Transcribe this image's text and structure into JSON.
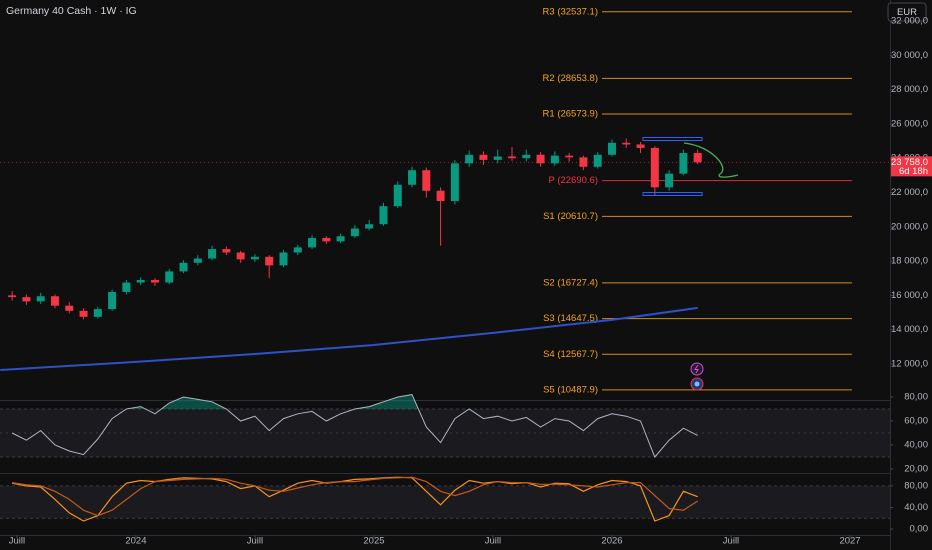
{
  "chart_data": [
    {
      "type": "candlestick",
      "title": "Germany 40 Cash · 1W · IG",
      "currency": "EUR",
      "x": [
        2023.48,
        2023.54,
        2023.6,
        2023.66,
        2023.72,
        2023.78,
        2023.84,
        2023.9,
        2023.96,
        2024.02,
        2024.08,
        2024.14,
        2024.2,
        2024.26,
        2024.32,
        2024.38,
        2024.44,
        2024.5,
        2024.56,
        2024.62,
        2024.68,
        2024.74,
        2024.8,
        2024.86,
        2024.92,
        2024.98,
        2025.04,
        2025.1,
        2025.16,
        2025.22,
        2025.28,
        2025.34,
        2025.4,
        2025.46,
        2025.52,
        2025.58,
        2025.64,
        2025.7,
        2025.76,
        2025.82,
        2025.88,
        2025.94,
        2026.0,
        2026.06,
        2026.12,
        2026.18,
        2026.24,
        2026.3,
        2026.36
      ],
      "open": [
        16000,
        15900,
        15650,
        15950,
        15400,
        15100,
        14750,
        15200,
        16200,
        16750,
        16900,
        16750,
        17400,
        17900,
        18150,
        18700,
        18500,
        18100,
        18250,
        17750,
        18500,
        18800,
        19350,
        19150,
        19450,
        19900,
        20150,
        21200,
        22450,
        23300,
        22100,
        21500,
        23700,
        24200,
        23900,
        24100,
        24000,
        24200,
        23700,
        24150,
        24050,
        23500,
        24200,
        24900,
        24800,
        24600,
        22300,
        23100,
        24300
      ],
      "high": [
        16250,
        16050,
        16150,
        16050,
        15600,
        15250,
        15350,
        16350,
        16900,
        17050,
        17000,
        17550,
        18050,
        18350,
        18900,
        18850,
        18600,
        18400,
        18350,
        18650,
        18950,
        19500,
        19450,
        19600,
        20100,
        20400,
        21400,
        22650,
        23500,
        23450,
        22300,
        23900,
        24450,
        24400,
        24500,
        24650,
        24500,
        24350,
        24400,
        24300,
        24150,
        24350,
        25100,
        25150,
        24950,
        24700,
        23300,
        24500,
        24500
      ],
      "low": [
        15700,
        15450,
        15500,
        15250,
        14950,
        14600,
        14650,
        15100,
        16050,
        16600,
        16550,
        16650,
        17300,
        17750,
        18050,
        18350,
        17900,
        17950,
        17000,
        17650,
        18350,
        18700,
        19000,
        19050,
        19350,
        19800,
        20050,
        21100,
        22300,
        21700,
        18900,
        21300,
        23500,
        23600,
        23700,
        23850,
        23800,
        23500,
        23550,
        23800,
        23300,
        23400,
        24100,
        24600,
        24300,
        21850,
        22100,
        23000,
        23650
      ],
      "close": [
        15900,
        15650,
        15950,
        15400,
        15100,
        14750,
        15200,
        16200,
        16750,
        16900,
        16750,
        17400,
        17900,
        18150,
        18700,
        18500,
        18100,
        18250,
        17750,
        18500,
        18800,
        19350,
        19150,
        19450,
        19900,
        20150,
        21200,
        22450,
        23300,
        22100,
        21500,
        23700,
        24200,
        23900,
        24100,
        24000,
        24200,
        23700,
        24150,
        24050,
        23500,
        24200,
        24900,
        24800,
        24600,
        22300,
        23100,
        24300,
        23758
      ],
      "up_color": "#089981",
      "down_color": "#f23645",
      "xlim": [
        2023.429,
        2027.168
      ],
      "xticks": [
        {
          "value": 2023.5,
          "label": "Juill"
        },
        2024,
        {
          "value": 2024.5,
          "label": "Juill"
        },
        2025,
        {
          "value": 2025.5,
          "label": "Juill"
        },
        2026,
        {
          "value": 2026.5,
          "label": "Juill"
        },
        2027
      ],
      "ylim": [
        9900,
        33225
      ],
      "yticks": [
        {
          "value": 32000,
          "label": "32 000,0"
        },
        {
          "value": 30000,
          "label": "30 000,0"
        },
        {
          "value": 28000,
          "label": "28 000,0"
        },
        {
          "value": 26000,
          "label": "26 000,0"
        },
        {
          "value": 24000,
          "label": "24 000,0"
        },
        {
          "value": 22000,
          "label": "22 000,0"
        },
        {
          "value": 20000,
          "label": "20 000,0"
        },
        {
          "value": 18000,
          "label": "18 000,0"
        },
        {
          "value": 16000,
          "label": "16 000,0"
        },
        {
          "value": 14000,
          "label": "14 000,0"
        },
        {
          "value": 12000,
          "label": "12 000,0"
        }
      ],
      "last_price": {
        "value": 23758,
        "label": "23 758,0"
      },
      "countdown": "6d 18h",
      "series": [
        {
          "type": "line",
          "color": "#2f50c8",
          "x": [
            2023.43,
            2024.0,
            2024.5,
            2025.0,
            2025.5,
            2026.0,
            2026.36
          ],
          "values": [
            11650,
            12120,
            12580,
            13110,
            13810,
            14570,
            15270
          ]
        }
      ],
      "levels": [
        {
          "value": 32537.1,
          "label": "R3 (32537.1)",
          "color": "#f7a21b"
        },
        {
          "value": 28653.8,
          "label": "R2 (28653.8)",
          "color": "#f7a21b"
        },
        {
          "value": 26573.9,
          "label": "R1 (26573.9)",
          "color": "#f7a21b"
        },
        {
          "value": 22690.6,
          "label": "P (22690.6)",
          "color": "#f23645"
        },
        {
          "value": 20610.7,
          "label": "S1 (20610.7)",
          "color": "#f7a21b"
        },
        {
          "value": 16727.4,
          "label": "S2 (16727.4)",
          "color": "#f7a21b"
        },
        {
          "value": 14647.5,
          "label": "S3 (14647.5)",
          "color": "#f7a21b"
        },
        {
          "value": 12567.7,
          "label": "S4 (12567.7)",
          "color": "#f7a21b"
        },
        {
          "value": 10487.9,
          "label": "S5 (10487.9)",
          "color": "#f7a21b"
        }
      ]
    },
    {
      "type": "rsi",
      "ylim": [
        17,
        82
      ],
      "yticks": [
        {
          "value": 80,
          "label": "80,00"
        },
        {
          "value": 60,
          "label": "60,00"
        },
        {
          "value": 40,
          "label": "40,00"
        },
        {
          "value": 20,
          "label": "20,00"
        }
      ],
      "bands": [
        30,
        70
      ],
      "middle": 50,
      "band_color": "#089981",
      "series": [
        {
          "color": "#b2b5be",
          "values": [
            50,
            44,
            52,
            40,
            35,
            32,
            45,
            62,
            70,
            72,
            66,
            75,
            80,
            78,
            76,
            70,
            60,
            64,
            52,
            62,
            66,
            68,
            60,
            66,
            70,
            72,
            76,
            80,
            82,
            55,
            42,
            62,
            70,
            62,
            64,
            60,
            63,
            55,
            62,
            60,
            52,
            62,
            66,
            64,
            60,
            30,
            44,
            54,
            48
          ]
        }
      ]
    },
    {
      "type": "stochastic",
      "ylim": [
        -11,
        102
      ],
      "yticks": [
        {
          "value": 80,
          "label": "80,00"
        },
        {
          "value": 40,
          "label": "40,00"
        },
        {
          "value": 0,
          "label": "0,00"
        }
      ],
      "bands": [
        20,
        80
      ],
      "series": [
        {
          "color": "#f7931a",
          "values": [
            85,
            80,
            78,
            55,
            30,
            15,
            25,
            60,
            85,
            90,
            88,
            92,
            95,
            94,
            93,
            88,
            75,
            80,
            60,
            72,
            85,
            90,
            85,
            88,
            92,
            93,
            95,
            96,
            95,
            70,
            45,
            72,
            90,
            85,
            88,
            84,
            86,
            78,
            85,
            84,
            70,
            82,
            90,
            88,
            80,
            15,
            25,
            70,
            60
          ]
        },
        {
          "color": "#c45a1a",
          "values": [
            86,
            82,
            80,
            70,
            55,
            35,
            25,
            35,
            55,
            75,
            88,
            90,
            92,
            93,
            94,
            92,
            85,
            80,
            72,
            70,
            76,
            82,
            86,
            88,
            88,
            91,
            94,
            95,
            96,
            88,
            70,
            62,
            70,
            82,
            88,
            86,
            86,
            83,
            83,
            82,
            80,
            78,
            82,
            86,
            86,
            62,
            38,
            35,
            52
          ]
        }
      ]
    }
  ]
}
